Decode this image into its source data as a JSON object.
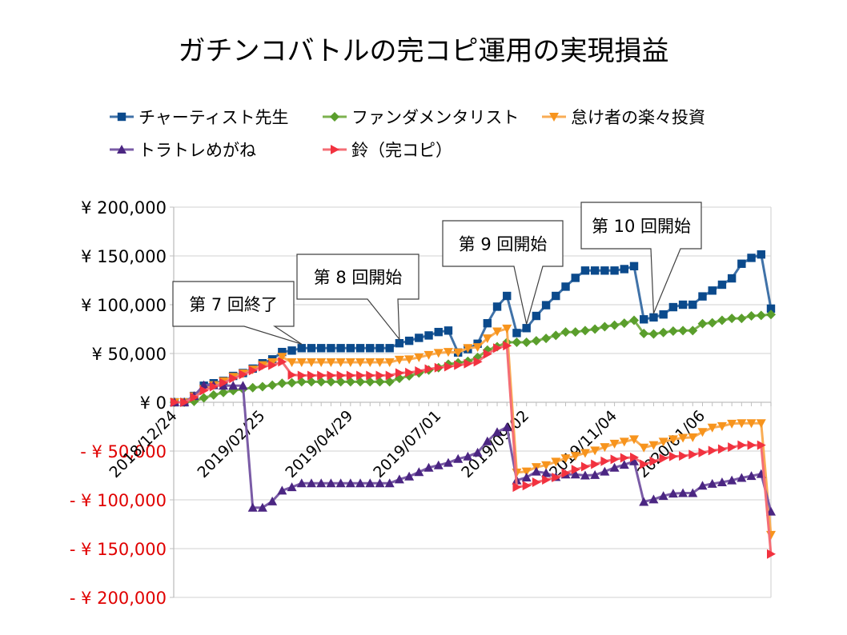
{
  "chart_data": {
    "type": "line",
    "title": "ガチンコバトルの完コピ運用の実現損益",
    "xlabel": "",
    "ylabel": "",
    "ylim": [
      -200000,
      200000
    ],
    "grid": true,
    "legend_position": "top",
    "negative_label_color": "#e00000",
    "positive_label_color": "#000000",
    "yticks": [
      {
        "value": 200000,
        "label": "¥ 200,000"
      },
      {
        "value": 150000,
        "label": "¥ 150,000"
      },
      {
        "value": 100000,
        "label": "¥ 100,000"
      },
      {
        "value": 50000,
        "label": "¥ 50,000"
      },
      {
        "value": 0,
        "label": "¥ 0"
      },
      {
        "value": -50000,
        "label": "- ¥ 50,000"
      },
      {
        "value": -100000,
        "label": "- ¥ 100,000"
      },
      {
        "value": -150000,
        "label": "- ¥ 150,000"
      },
      {
        "value": -200000,
        "label": "- ¥ 200,000"
      }
    ],
    "xticks": [
      {
        "index": 0,
        "label": "2018/12/24"
      },
      {
        "index": 9,
        "label": "2019/02/25"
      },
      {
        "index": 18,
        "label": "2019/04/29"
      },
      {
        "index": 27,
        "label": "2019/07/01"
      },
      {
        "index": 36,
        "label": "2019/09/02"
      },
      {
        "index": 45,
        "label": "2019/11/04"
      },
      {
        "index": 54,
        "label": "2020/01/06"
      }
    ],
    "series": [
      {
        "name": "チャーティスト先生",
        "marker": "square",
        "color": "#0b4a8c",
        "line_color": "#4072a8",
        "values": [
          0,
          0,
          6500,
          17000,
          19500,
          22000,
          27000,
          30000,
          34500,
          40000,
          44000,
          51500,
          53000,
          55500,
          55500,
          55500,
          55500,
          55500,
          55500,
          55500,
          55500,
          55500,
          55500,
          60500,
          63000,
          66000,
          68500,
          72000,
          73500,
          51000,
          54500,
          60000,
          81000,
          98000,
          109000,
          71000,
          76000,
          88500,
          99500,
          109000,
          118500,
          127500,
          135000,
          135000,
          135000,
          135000,
          136500,
          139500,
          85000,
          87000,
          90000,
          97500,
          100000,
          100000,
          108500,
          114500,
          120500,
          127000,
          142000,
          148000,
          151500,
          96000
        ]
      },
      {
        "name": "ファンダメンタリスト",
        "marker": "diamond",
        "color": "#5a9e2c",
        "line_color": "#7db24f",
        "values": [
          0,
          0,
          1000,
          4500,
          7500,
          10000,
          12000,
          13500,
          15000,
          16000,
          17500,
          19500,
          20000,
          21000,
          21000,
          21000,
          21000,
          21000,
          21000,
          21000,
          21000,
          21000,
          21000,
          24500,
          27000,
          30000,
          33000,
          35500,
          39000,
          40500,
          42000,
          46000,
          53500,
          57000,
          61500,
          61500,
          61500,
          63000,
          65500,
          68500,
          72000,
          72000,
          73500,
          75000,
          77500,
          79000,
          81000,
          84000,
          70500,
          70000,
          71500,
          73000,
          73500,
          73500,
          80500,
          81500,
          84000,
          86000,
          86000,
          88500,
          89000,
          90000
        ]
      },
      {
        "name": "怠け者の楽々投資",
        "marker": "triangle-down",
        "color": "#f7941d",
        "line_color": "#f9ad55",
        "values": [
          0,
          0,
          6000,
          13500,
          17500,
          21500,
          26000,
          29500,
          33500,
          38000,
          41000,
          46500,
          41000,
          41000,
          41000,
          41000,
          41000,
          41000,
          41000,
          41000,
          41000,
          41000,
          41000,
          43500,
          44000,
          46000,
          48500,
          50500,
          51500,
          51000,
          55500,
          56500,
          65500,
          72500,
          75500,
          -72000,
          -71000,
          -66500,
          -64500,
          -61000,
          -57500,
          -55000,
          -52000,
          -49500,
          -46000,
          -42500,
          -40500,
          -38000,
          -46500,
          -44000,
          -40500,
          -38000,
          -36500,
          -36000,
          -30500,
          -26000,
          -24500,
          -22000,
          -21500,
          -21500,
          -21500,
          -136000
        ]
      },
      {
        "name": "トラトレめがね",
        "marker": "triangle-up",
        "color": "#4b2682",
        "line_color": "#7a5ba6",
        "values": [
          0,
          0,
          6500,
          17500,
          17500,
          17000,
          17000,
          17000,
          -108000,
          -108000,
          -101500,
          -90500,
          -87000,
          -83000,
          -83000,
          -83000,
          -83000,
          -83000,
          -83000,
          -83000,
          -83000,
          -83000,
          -83000,
          -79000,
          -76000,
          -71500,
          -67000,
          -64500,
          -62000,
          -58000,
          -55500,
          -51500,
          -40000,
          -30500,
          -25500,
          -80000,
          -77000,
          -71000,
          -72500,
          -76500,
          -74000,
          -74000,
          -75000,
          -74500,
          -71000,
          -67000,
          -64000,
          -60500,
          -102000,
          -99500,
          -96000,
          -93500,
          -93000,
          -93000,
          -85500,
          -83500,
          -82000,
          -80000,
          -77500,
          -75500,
          -73500,
          -112000
        ]
      },
      {
        "name": "鈴（完コピ）",
        "marker": "triangle-right",
        "color": "#f2323f",
        "line_color": "#f46e76",
        "values": [
          0,
          0,
          5000,
          12000,
          16000,
          20000,
          24500,
          28500,
          32500,
          36500,
          38000,
          41500,
          28000,
          27500,
          27500,
          27500,
          27500,
          27500,
          27500,
          27500,
          27500,
          27500,
          27500,
          30000,
          30500,
          32000,
          34000,
          35500,
          36500,
          38000,
          39500,
          41500,
          49500,
          55500,
          58000,
          -87000,
          -85500,
          -82000,
          -79500,
          -77000,
          -72500,
          -69000,
          -66000,
          -63500,
          -60500,
          -58500,
          -57000,
          -56500,
          -63500,
          -60500,
          -57500,
          -55500,
          -55000,
          -53500,
          -51500,
          -49500,
          -48000,
          -46000,
          -44000,
          -44000,
          -44000,
          -155500
        ]
      }
    ],
    "annotations": [
      {
        "text": "第 7 回終了",
        "index": 13,
        "series": 0
      },
      {
        "text": "第 8 回開始",
        "index": 23,
        "series": 0
      },
      {
        "text": "第 9 回開始",
        "index": 36,
        "series": 0
      },
      {
        "text": "第 10 回開始",
        "index": 49,
        "series": 0
      }
    ]
  }
}
